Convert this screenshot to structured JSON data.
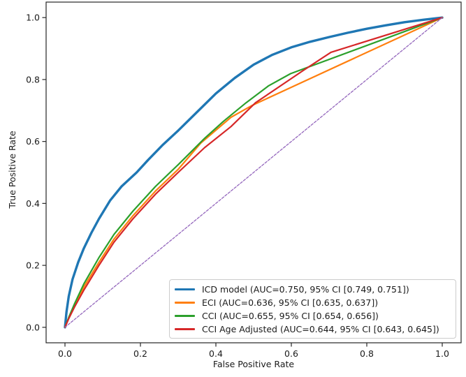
{
  "chart_data": {
    "type": "line",
    "subtype": "roc-curves",
    "title": "",
    "xlabel": "False Positive Rate",
    "ylabel": "True Positive Rate",
    "xlim": [
      -0.05,
      1.05
    ],
    "ylim": [
      -0.05,
      1.05
    ],
    "grid": false,
    "legend_position": "lower right",
    "x_tick_values": [
      0.0,
      0.2,
      0.4,
      0.6,
      0.8,
      1.0
    ],
    "x_tick_labels": [
      "0.0",
      "0.2",
      "0.4",
      "0.6",
      "0.8",
      "1.0"
    ],
    "y_tick_values": [
      0.0,
      0.2,
      0.4,
      0.6,
      0.8,
      1.0
    ],
    "y_tick_labels": [
      "0.0",
      "0.2",
      "0.4",
      "0.6",
      "0.8",
      "1.0"
    ],
    "series": [
      {
        "label": "ICD model (AUC=0.750, 95% CI [0.749, 0.751])",
        "color": "#1f77b4",
        "line_width": 3.4,
        "dash": null,
        "in_legend": true,
        "points": [
          [
            0,
            0
          ],
          [
            0.004,
            0.05
          ],
          [
            0.01,
            0.1
          ],
          [
            0.02,
            0.155
          ],
          [
            0.035,
            0.21
          ],
          [
            0.05,
            0.255
          ],
          [
            0.07,
            0.305
          ],
          [
            0.09,
            0.35
          ],
          [
            0.12,
            0.41
          ],
          [
            0.15,
            0.455
          ],
          [
            0.19,
            0.5
          ],
          [
            0.22,
            0.54
          ],
          [
            0.26,
            0.59
          ],
          [
            0.3,
            0.635
          ],
          [
            0.35,
            0.695
          ],
          [
            0.4,
            0.755
          ],
          [
            0.45,
            0.805
          ],
          [
            0.5,
            0.848
          ],
          [
            0.55,
            0.88
          ],
          [
            0.6,
            0.904
          ],
          [
            0.65,
            0.922
          ],
          [
            0.7,
            0.937
          ],
          [
            0.75,
            0.951
          ],
          [
            0.8,
            0.964
          ],
          [
            0.85,
            0.975
          ],
          [
            0.9,
            0.985
          ],
          [
            0.95,
            0.993
          ],
          [
            1,
            1
          ]
        ]
      },
      {
        "label": "ECI (AUC=0.636, 95% CI [0.635, 0.637])",
        "color": "#ff7f0e",
        "line_width": 2.2,
        "dash": null,
        "in_legend": true,
        "points": [
          [
            0,
            0
          ],
          [
            0.01,
            0.03
          ],
          [
            0.025,
            0.07
          ],
          [
            0.05,
            0.13
          ],
          [
            0.09,
            0.21
          ],
          [
            0.13,
            0.285
          ],
          [
            0.18,
            0.36
          ],
          [
            0.24,
            0.44
          ],
          [
            0.3,
            0.51
          ],
          [
            0.36,
            0.595
          ],
          [
            0.44,
            0.678
          ],
          [
            0.497,
            0.717
          ],
          [
            1,
            1
          ]
        ]
      },
      {
        "label": "CCI (AUC=0.655, 95% CI [0.654, 0.656])",
        "color": "#2ca02c",
        "line_width": 2.2,
        "dash": null,
        "in_legend": true,
        "points": [
          [
            0,
            0
          ],
          [
            0.01,
            0.032
          ],
          [
            0.025,
            0.075
          ],
          [
            0.05,
            0.14
          ],
          [
            0.09,
            0.225
          ],
          [
            0.13,
            0.3
          ],
          [
            0.18,
            0.375
          ],
          [
            0.24,
            0.455
          ],
          [
            0.3,
            0.525
          ],
          [
            0.37,
            0.61
          ],
          [
            0.42,
            0.665
          ],
          [
            0.48,
            0.725
          ],
          [
            0.54,
            0.78
          ],
          [
            0.598,
            0.819
          ],
          [
            1,
            1
          ]
        ]
      },
      {
        "label": "CCI Age Adjusted (AUC=0.644, 95% CI [0.643, 0.645])",
        "color": "#d62728",
        "line_width": 2.2,
        "dash": null,
        "in_legend": true,
        "points": [
          [
            0,
            0
          ],
          [
            0.01,
            0.028
          ],
          [
            0.025,
            0.065
          ],
          [
            0.05,
            0.12
          ],
          [
            0.09,
            0.2
          ],
          [
            0.13,
            0.275
          ],
          [
            0.18,
            0.35
          ],
          [
            0.24,
            0.43
          ],
          [
            0.3,
            0.5
          ],
          [
            0.37,
            0.58
          ],
          [
            0.44,
            0.648
          ],
          [
            0.505,
            0.725
          ],
          [
            0.63,
            0.828
          ],
          [
            0.705,
            0.888
          ],
          [
            1,
            1
          ]
        ]
      },
      {
        "label": "",
        "color": "#9467bd",
        "line_width": 1.3,
        "dash": "3.5 2.2",
        "in_legend": false,
        "points": [
          [
            0,
            0
          ],
          [
            1,
            1
          ]
        ]
      }
    ]
  }
}
